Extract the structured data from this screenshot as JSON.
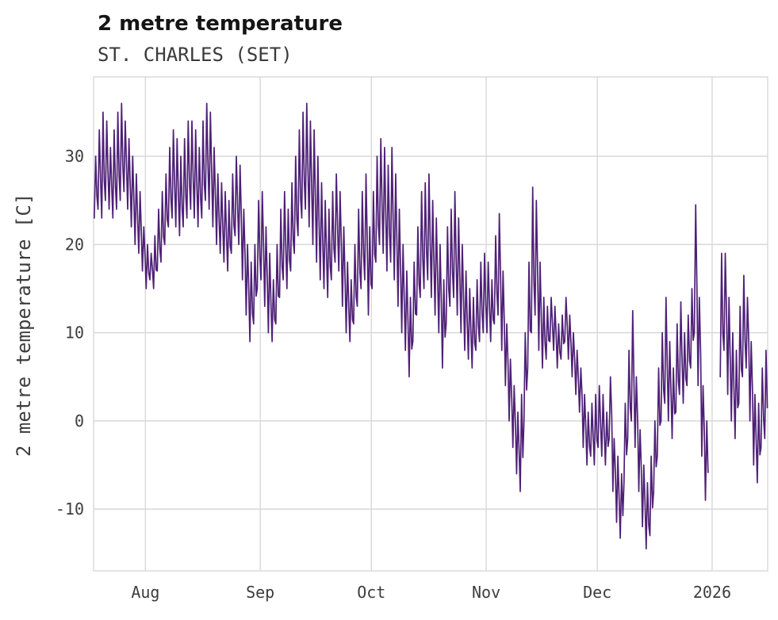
{
  "header": {
    "title": "2 metre temperature",
    "subtitle": "ST. CHARLES (SET)"
  },
  "chart_data": {
    "type": "line",
    "title": "2 metre temperature",
    "subtitle": "ST. CHARLES (SET)",
    "series_name": "2 metre temperature",
    "xlabel": "",
    "ylabel": "2 metre temperature [C]",
    "ylim": [
      -17,
      39
    ],
    "yticks": [
      -10,
      0,
      10,
      20,
      30
    ],
    "grid": true,
    "legend": "none",
    "line_color": "#4e2076",
    "grid_color": "#d8d8d8",
    "text_color": "#3d3d3d",
    "x_total_days": 182,
    "xticks": [
      {
        "day": 14,
        "label": "Aug"
      },
      {
        "day": 45,
        "label": "Sep"
      },
      {
        "day": 75,
        "label": "Oct"
      },
      {
        "day": 106,
        "label": "Nov"
      },
      {
        "day": 136,
        "label": "Dec"
      },
      {
        "day": 167,
        "label": "2026"
      }
    ],
    "daily_min_max": [
      [
        23,
        30
      ],
      [
        24,
        33
      ],
      [
        23,
        35
      ],
      [
        25,
        34
      ],
      [
        24,
        31
      ],
      [
        23,
        33
      ],
      [
        24,
        35
      ],
      [
        25,
        36
      ],
      [
        26,
        34
      ],
      [
        24,
        32
      ],
      [
        22,
        30
      ],
      [
        20,
        28
      ],
      [
        19,
        26
      ],
      [
        17,
        22
      ],
      [
        15,
        20
      ],
      [
        16,
        19
      ],
      [
        15,
        21
      ],
      [
        17,
        24
      ],
      [
        18,
        26
      ],
      [
        20,
        28
      ],
      [
        22,
        31
      ],
      [
        23,
        33
      ],
      [
        22,
        32
      ],
      [
        21,
        30
      ],
      [
        22,
        32
      ],
      [
        23,
        34
      ],
      [
        24,
        34
      ],
      [
        23,
        33
      ],
      [
        22,
        31
      ],
      [
        23,
        34
      ],
      [
        25,
        36
      ],
      [
        24,
        35
      ],
      [
        22,
        31
      ],
      [
        20,
        28
      ],
      [
        19,
        27
      ],
      [
        18,
        26
      ],
      [
        17,
        25
      ],
      [
        19,
        28
      ],
      [
        21,
        30
      ],
      [
        20,
        29
      ],
      [
        16,
        24
      ],
      [
        12,
        20
      ],
      [
        9,
        18
      ],
      [
        11,
        20
      ],
      [
        15,
        25
      ],
      [
        16,
        26
      ],
      [
        13,
        22
      ],
      [
        10,
        19
      ],
      [
        9,
        16
      ],
      [
        11,
        20
      ],
      [
        14,
        24
      ],
      [
        16,
        26
      ],
      [
        15,
        24
      ],
      [
        17,
        27
      ],
      [
        19,
        30
      ],
      [
        21,
        33
      ],
      [
        23,
        35
      ],
      [
        24,
        36
      ],
      [
        22,
        34
      ],
      [
        20,
        33
      ],
      [
        18,
        30
      ],
      [
        16,
        27
      ],
      [
        15,
        25
      ],
      [
        14,
        24
      ],
      [
        16,
        26
      ],
      [
        18,
        28
      ],
      [
        17,
        26
      ],
      [
        13,
        22
      ],
      [
        10,
        18
      ],
      [
        9,
        16
      ],
      [
        11,
        20
      ],
      [
        13,
        24
      ],
      [
        15,
        26
      ],
      [
        16,
        28
      ],
      [
        12,
        22
      ],
      [
        15,
        26
      ],
      [
        18,
        30
      ],
      [
        20,
        32
      ],
      [
        19,
        31
      ],
      [
        17,
        29
      ],
      [
        18,
        31
      ],
      [
        16,
        28
      ],
      [
        13,
        24
      ],
      [
        10,
        20
      ],
      [
        8,
        17
      ],
      [
        5,
        14
      ],
      [
        9,
        18
      ],
      [
        12,
        22
      ],
      [
        14,
        26
      ],
      [
        15,
        27
      ],
      [
        16,
        28
      ],
      [
        14,
        25
      ],
      [
        12,
        23
      ],
      [
        10,
        20
      ],
      [
        6,
        16
      ],
      [
        11,
        22
      ],
      [
        13,
        24
      ],
      [
        14,
        26
      ],
      [
        12,
        23
      ],
      [
        10,
        20
      ],
      [
        8,
        17
      ],
      [
        7,
        15
      ],
      [
        6,
        14
      ],
      [
        8,
        16
      ],
      [
        9,
        18
      ],
      [
        10,
        19
      ],
      [
        10,
        18
      ],
      [
        9,
        16
      ],
      [
        11,
        21
      ],
      [
        12,
        23.5
      ],
      [
        8,
        17
      ],
      [
        4,
        11
      ],
      [
        0,
        7
      ],
      [
        -3,
        4
      ],
      [
        -6,
        1
      ],
      [
        -8,
        3
      ],
      [
        0,
        10
      ],
      [
        6,
        18
      ],
      [
        10,
        26.5
      ],
      [
        12,
        25
      ],
      [
        8,
        18
      ],
      [
        6,
        14
      ],
      [
        7,
        13
      ],
      [
        9,
        14
      ],
      [
        8,
        13
      ],
      [
        6,
        11
      ],
      [
        7,
        12
      ],
      [
        9,
        14
      ],
      [
        7,
        12
      ],
      [
        5,
        10
      ],
      [
        3,
        8
      ],
      [
        1,
        6
      ],
      [
        -3,
        3
      ],
      [
        -5,
        1
      ],
      [
        -4,
        2
      ],
      [
        -5,
        3
      ],
      [
        -3,
        4
      ],
      [
        -4,
        3
      ],
      [
        -5,
        1
      ],
      [
        -2,
        5
      ],
      [
        -8,
        -2
      ],
      [
        -11.5,
        -4
      ],
      [
        -13.3,
        -6
      ],
      [
        -7,
        2
      ],
      [
        -2,
        8
      ],
      [
        0,
        12.5
      ],
      [
        -3,
        5
      ],
      [
        -8,
        -1
      ],
      [
        -12,
        -5
      ],
      [
        -14.5,
        -7
      ],
      [
        -13,
        -4
      ],
      [
        -8,
        0
      ],
      [
        -4,
        6
      ],
      [
        0,
        10
      ],
      [
        2,
        14
      ],
      [
        0,
        9
      ],
      [
        -2,
        6
      ],
      [
        1,
        11
      ],
      [
        3,
        13.5
      ],
      [
        2,
        10
      ],
      [
        4,
        12
      ],
      [
        6,
        15
      ],
      [
        10,
        24.5
      ],
      [
        4,
        14
      ],
      [
        -4,
        4
      ],
      [
        -9,
        0
      ],
      null,
      null,
      null,
      [
        5,
        19
      ],
      [
        8,
        19
      ],
      [
        3,
        14
      ],
      [
        0,
        10
      ],
      [
        -2,
        8
      ],
      [
        2,
        13
      ],
      [
        5,
        16.5
      ],
      [
        6,
        14
      ],
      [
        0,
        9
      ],
      [
        -5,
        3
      ],
      [
        -7,
        2
      ],
      [
        -3,
        6
      ],
      [
        -2,
        8
      ]
    ]
  }
}
